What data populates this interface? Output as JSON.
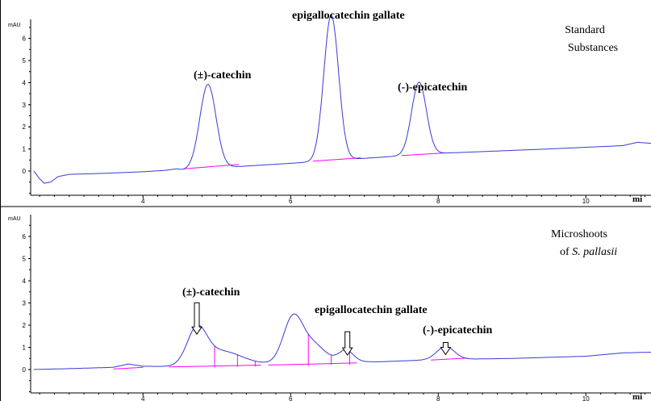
{
  "chart_data": [
    {
      "type": "line",
      "title": "Standard Substances",
      "title_lines": [
        "Standard",
        "Substances"
      ],
      "ylabel": "mAU",
      "xlabel": "min",
      "x_unit_label": "mi",
      "xlim": [
        2.5,
        11.1
      ],
      "ylim": [
        -1.1,
        7.2
      ],
      "xticks": [
        4,
        6,
        8,
        10
      ],
      "yticks": [
        0,
        1,
        2,
        3,
        4,
        5,
        6
      ],
      "baseline": [
        [
          2.52,
          0.0
        ],
        [
          2.6,
          -0.35
        ],
        [
          2.66,
          -0.55
        ],
        [
          2.75,
          -0.5
        ],
        [
          2.85,
          -0.25
        ],
        [
          3.0,
          -0.15
        ],
        [
          3.5,
          -0.1
        ],
        [
          4.0,
          -0.03
        ],
        [
          4.3,
          0.03
        ],
        [
          4.45,
          0.1
        ],
        [
          4.55,
          0.05
        ],
        [
          6.0,
          0.35
        ],
        [
          8.0,
          0.8
        ],
        [
          9.5,
          1.0
        ],
        [
          10.5,
          1.15
        ],
        [
          10.7,
          1.3
        ],
        [
          10.9,
          1.25
        ],
        [
          11.1,
          1.25
        ]
      ],
      "peaks": [
        {
          "name": "(±)-catechin",
          "rt": 4.88,
          "height": 3.8,
          "width": 0.11,
          "start": 4.55,
          "end": 5.3
        },
        {
          "name": "epigallocatechin gallate",
          "rt": 6.55,
          "height": 6.58,
          "width": 0.1,
          "start": 6.3,
          "end": 6.95
        },
        {
          "name": "(-)-epicatechin",
          "rt": 7.74,
          "height": 3.28,
          "width": 0.1,
          "start": 7.5,
          "end": 8.1
        }
      ],
      "integration_lines": [
        [
          [
            4.55,
            0.1
          ],
          [
            5.3,
            0.3
          ]
        ],
        [
          [
            6.3,
            0.45
          ],
          [
            6.95,
            0.6
          ]
        ],
        [
          [
            7.5,
            0.7
          ],
          [
            8.1,
            0.82
          ]
        ]
      ]
    },
    {
      "type": "line",
      "title": "Microshoots of S. pallasii",
      "title_lines": [
        "Microshoots",
        "of ",
        "S. pallasii"
      ],
      "ylabel": "mAU",
      "xlabel": "min",
      "x_unit_label": "mi",
      "xlim": [
        2.5,
        11.1
      ],
      "ylim": [
        -0.1,
        7.0
      ],
      "xticks": [
        4,
        6,
        8,
        10
      ],
      "yticks": [
        0,
        1,
        2,
        3,
        4,
        5,
        6
      ],
      "baseline": [
        [
          2.5,
          0.0
        ],
        [
          3.0,
          0.04
        ],
        [
          3.6,
          0.1
        ],
        [
          3.8,
          0.25
        ],
        [
          4.0,
          0.15
        ],
        [
          4.4,
          0.12
        ],
        [
          5.5,
          0.22
        ],
        [
          6.5,
          0.35
        ],
        [
          7.2,
          0.35
        ],
        [
          8.0,
          0.45
        ],
        [
          9.0,
          0.5
        ],
        [
          10.0,
          0.6
        ],
        [
          10.5,
          0.75
        ],
        [
          11.1,
          0.8
        ]
      ],
      "peaks": [
        {
          "name": "(±)-catechin",
          "rt": 4.73,
          "height": 1.5,
          "width": 0.13,
          "start": 4.35,
          "end": 5.6
        },
        {
          "name": "shoulder",
          "rt": 5.05,
          "height": 0.65,
          "width": 0.28,
          "start": 4.9,
          "end": 5.6
        },
        {
          "name": "peak-6.0",
          "rt": 6.03,
          "height": 2.0,
          "width": 0.13,
          "start": 5.7,
          "end": 6.9
        },
        {
          "name": "shoulder-6.3",
          "rt": 6.3,
          "height": 0.8,
          "width": 0.16,
          "start": 6.2,
          "end": 6.7
        },
        {
          "name": "epigallocatechin gallate",
          "rt": 6.75,
          "height": 0.52,
          "width": 0.1,
          "start": 6.6,
          "end": 6.95
        },
        {
          "name": "(-)-epicatechin",
          "rt": 8.1,
          "height": 0.58,
          "width": 0.12,
          "start": 7.9,
          "end": 8.4
        }
      ],
      "integration_lines": [
        [
          [
            3.6,
            0.02
          ],
          [
            4.0,
            0.1
          ]
        ],
        [
          [
            4.35,
            0.12
          ],
          [
            5.6,
            0.2
          ]
        ],
        [
          [
            5.7,
            0.2
          ],
          [
            6.9,
            0.3
          ]
        ],
        [
          [
            7.9,
            0.43
          ],
          [
            8.4,
            0.52
          ]
        ]
      ],
      "drop_lines": [
        4.97,
        5.28,
        5.52,
        6.24,
        6.55,
        6.8
      ],
      "arrows": [
        {
          "label": "(±)-catechin",
          "x": 4.73,
          "y": 1.52
        },
        {
          "label": "epigallocatechin gallate",
          "x": 6.77,
          "y": 0.58
        },
        {
          "label": "(-)-epicatechin",
          "x": 8.1,
          "y": 0.6
        }
      ]
    }
  ]
}
